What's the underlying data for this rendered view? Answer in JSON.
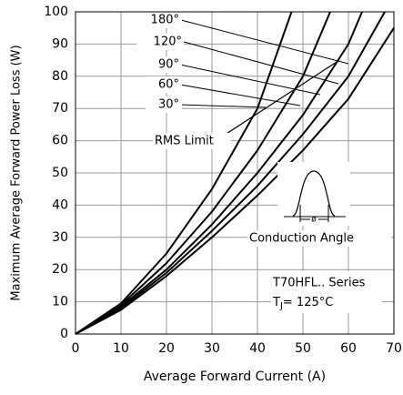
{
  "chart_data": {
    "type": "line",
    "x_label": "Average Forward Current (A)",
    "y_label": "Maximum Average Forward Power Loss (W)",
    "xlim": [
      0,
      70
    ],
    "xticks": [
      0,
      10,
      20,
      30,
      40,
      50,
      60,
      70
    ],
    "ylim": [
      0,
      100
    ],
    "yticks": [
      0,
      10,
      20,
      30,
      40,
      50,
      60,
      70,
      80,
      90,
      100
    ],
    "grid": true,
    "series": [
      {
        "name": "180°",
        "color": "#000000",
        "x": [
          0,
          10,
          20,
          30,
          40,
          50,
          60,
          70
        ],
        "values": [
          0,
          7.5,
          18,
          30,
          43,
          57,
          73,
          95
        ]
      },
      {
        "name": "120°",
        "color": "#000000",
        "x": [
          0,
          10,
          20,
          30,
          40,
          50,
          60,
          68
        ],
        "values": [
          0,
          8,
          19,
          32,
          46,
          62,
          80,
          100
        ]
      },
      {
        "name": "90°",
        "color": "#000000",
        "x": [
          0,
          10,
          20,
          30,
          40,
          50,
          60,
          63
        ],
        "values": [
          0,
          8.5,
          20,
          34,
          50,
          68,
          90,
          100
        ]
      },
      {
        "name": "60°",
        "color": "#000000",
        "x": [
          0,
          10,
          20,
          30,
          40,
          50,
          56
        ],
        "values": [
          0,
          9,
          22,
          38,
          57,
          80,
          100
        ]
      },
      {
        "name": "30°",
        "color": "#000000",
        "x": [
          0,
          10,
          20,
          30,
          40,
          47.5
        ],
        "values": [
          0,
          9.5,
          25,
          45,
          70,
          100
        ]
      }
    ],
    "rms_limit": {
      "label": "RMS Limit",
      "x": [
        33,
        58
      ],
      "values": [
        62,
        85
      ]
    },
    "conduction_label": "Conduction Angle",
    "conduction_symbol": "ø",
    "series_label": "T70HFL.. Series",
    "tj_label": [
      "T",
      "J",
      "= 125°C"
    ]
  }
}
